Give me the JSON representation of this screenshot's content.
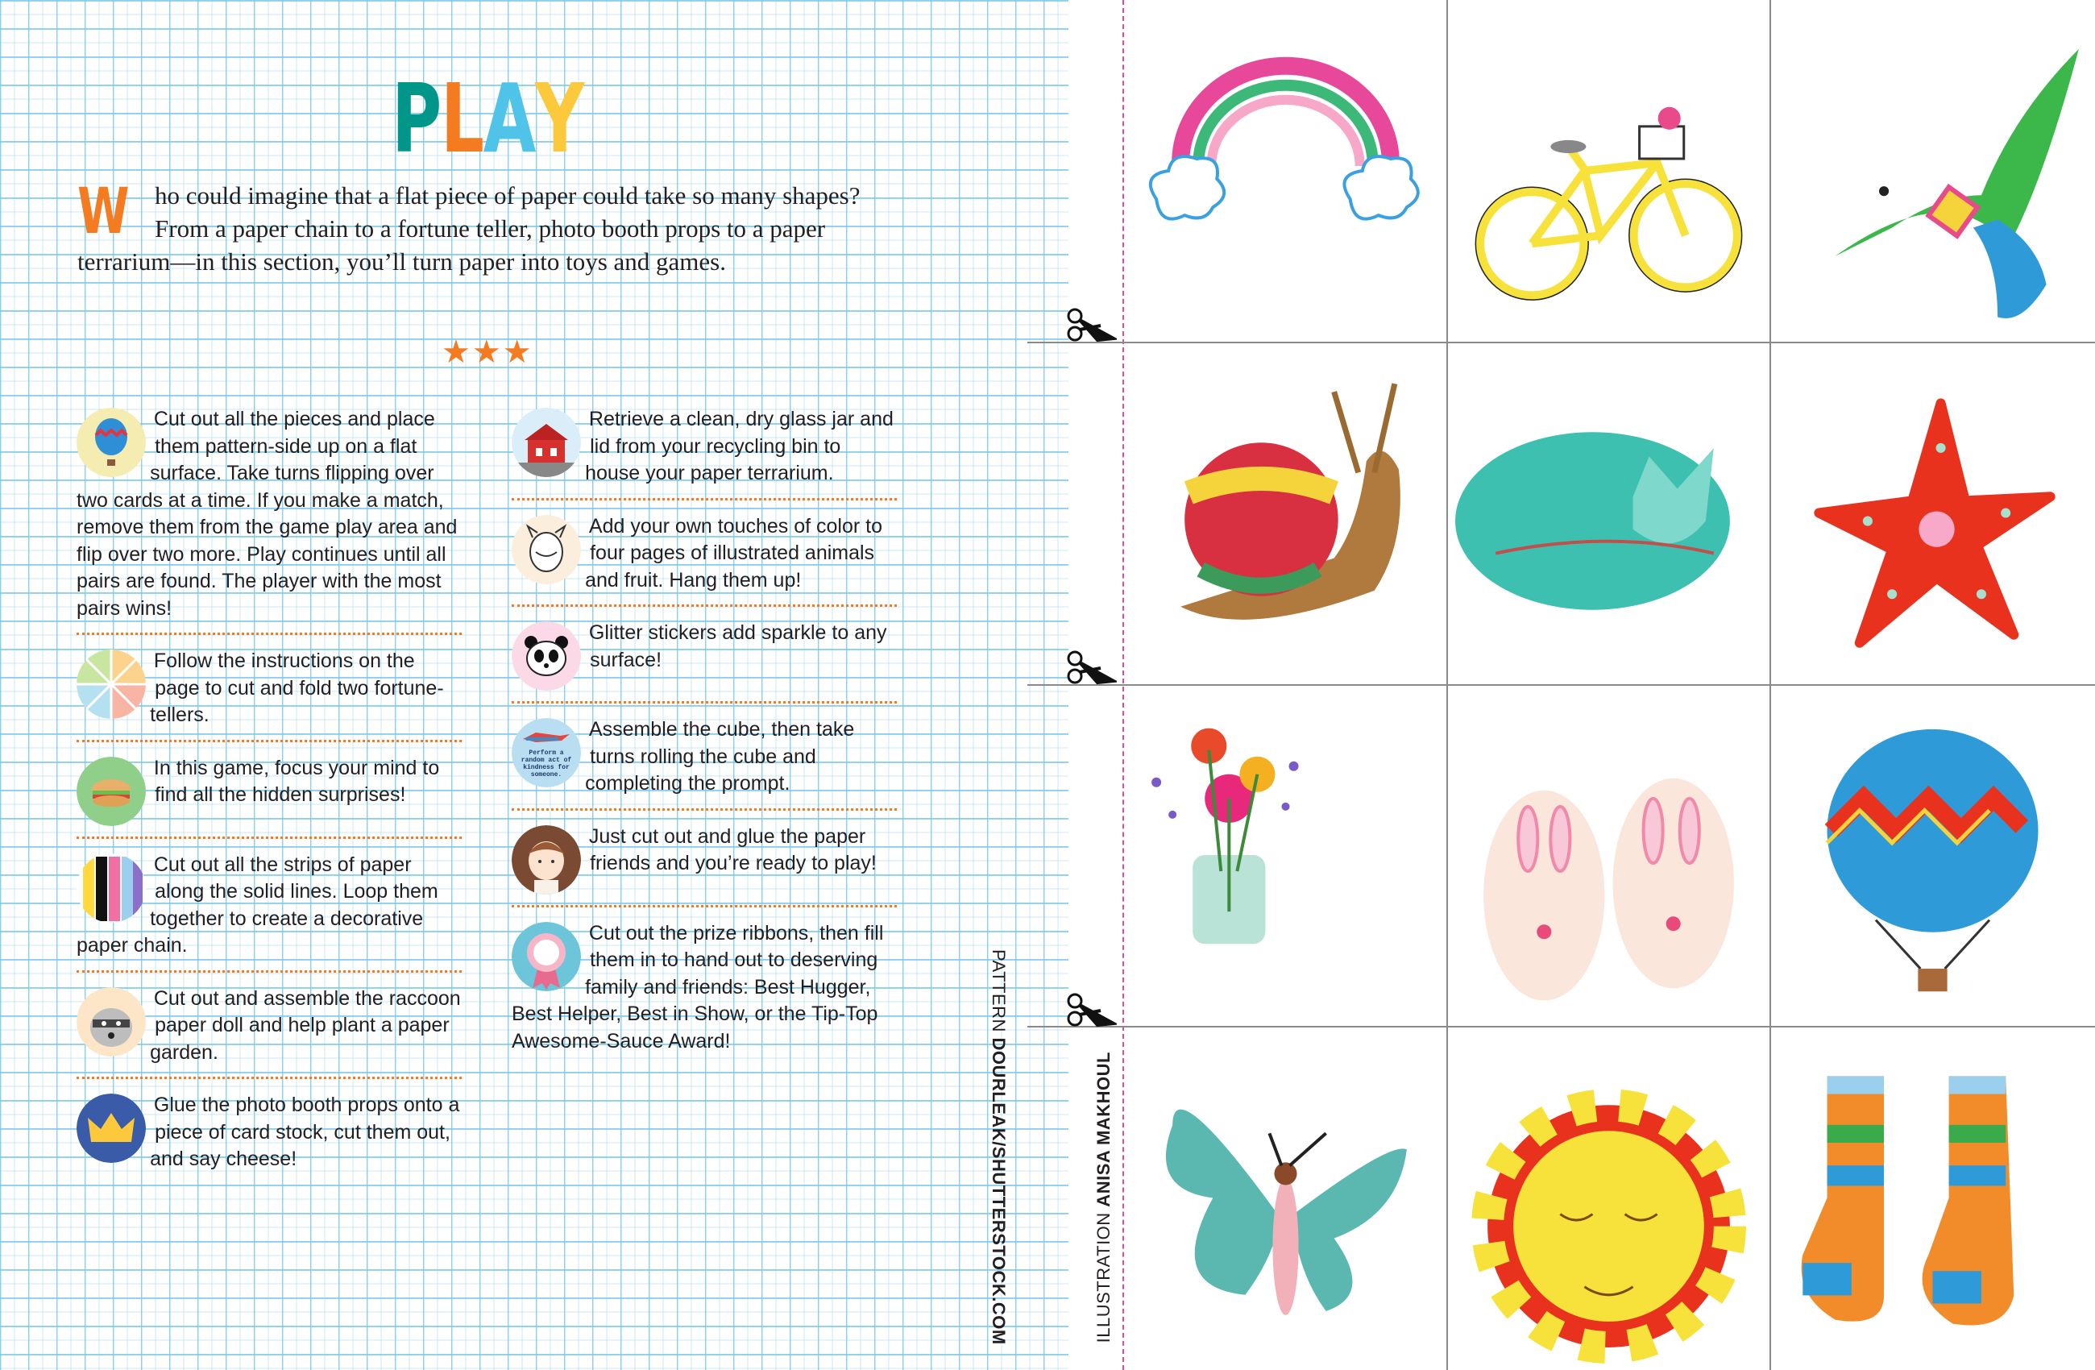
{
  "page": {
    "title": {
      "letters": [
        "P",
        "L",
        "A",
        "Y"
      ],
      "colors": [
        "#00968a",
        "#f47b20",
        "#4fc3e8",
        "#fcc83c"
      ]
    },
    "intro": {
      "dropcap": "W",
      "text": "ho could imagine that a flat piece of paper could take so many shapes? From a paper chain to a fortune teller, photo booth props to a paper terrarium—in this section, you’ll turn paper into toys and games."
    },
    "divider": "★★★",
    "accent_color": "#f47b20",
    "columns": [
      [
        {
          "icon": "hot-air-balloon-icon",
          "text": "Cut out all the pieces and place them pattern-side up on a flat surface. Take turns flipping over two cards at a time. If you make a match, remove them from the game play area and flip over two more. Play continues until all pairs are found. The player with the most pairs wins!"
        },
        {
          "icon": "fortune-teller-icon",
          "text": "Follow the instructions on the page to cut and fold two fortune-tellers."
        },
        {
          "icon": "sandwich-icon",
          "text": "In this game, focus your mind to find all the hidden surprises!"
        },
        {
          "icon": "paper-strips-icon",
          "text": "Cut out all the strips of paper along the solid lines. Loop them together to create a decorative paper chain."
        },
        {
          "icon": "raccoon-icon",
          "text": "Cut out and assemble the raccoon paper doll and help plant a paper garden."
        },
        {
          "icon": "crown-icon",
          "text": "Glue the photo booth props onto a piece of card stock, cut them out, and say cheese!"
        }
      ],
      [
        {
          "icon": "terrarium-house-icon",
          "text": "Retrieve a clean, dry glass jar and lid from your recycling bin to house your paper terrarium."
        },
        {
          "icon": "animal-coloring-icon",
          "text": "Add your own touches of color to four pages of illustrated animals and fruit. Hang them up!"
        },
        {
          "icon": "panda-icon",
          "text": "Glitter stickers add sparkle to any surface!"
        },
        {
          "icon": "superhero-cube-icon",
          "text": "Assemble the cube, then take turns rolling the cube and completing the prompt.",
          "icon_text": "Perform a random act of kindness for someone."
        },
        {
          "icon": "paper-friend-icon",
          "text": "Just cut out and glue the paper friends and you’re ready to play!"
        },
        {
          "icon": "prize-ribbon-icon",
          "text": "Cut out the prize ribbons, then fill them in to hand out to deserving family and friends: Best Hugger, Best Helper, Best in Show, or the Tip-Top Awesome-Sauce Award!"
        }
      ]
    ],
    "credits": {
      "pattern_label": "PATTERN ",
      "pattern_name": "DOURLEAK/SHUTTERSTOCK.COM",
      "illustration_label": "ILLUSTRATION ",
      "illustration_name": "ANISA MAKHOUL"
    }
  },
  "cards": [
    "rainbow",
    "bicycle",
    "bird",
    "snail",
    "sleeping-cat",
    "starfish",
    "flower-jar",
    "bunny-slippers",
    "hot-air-balloon",
    "butterfly",
    "sun",
    "socks"
  ]
}
